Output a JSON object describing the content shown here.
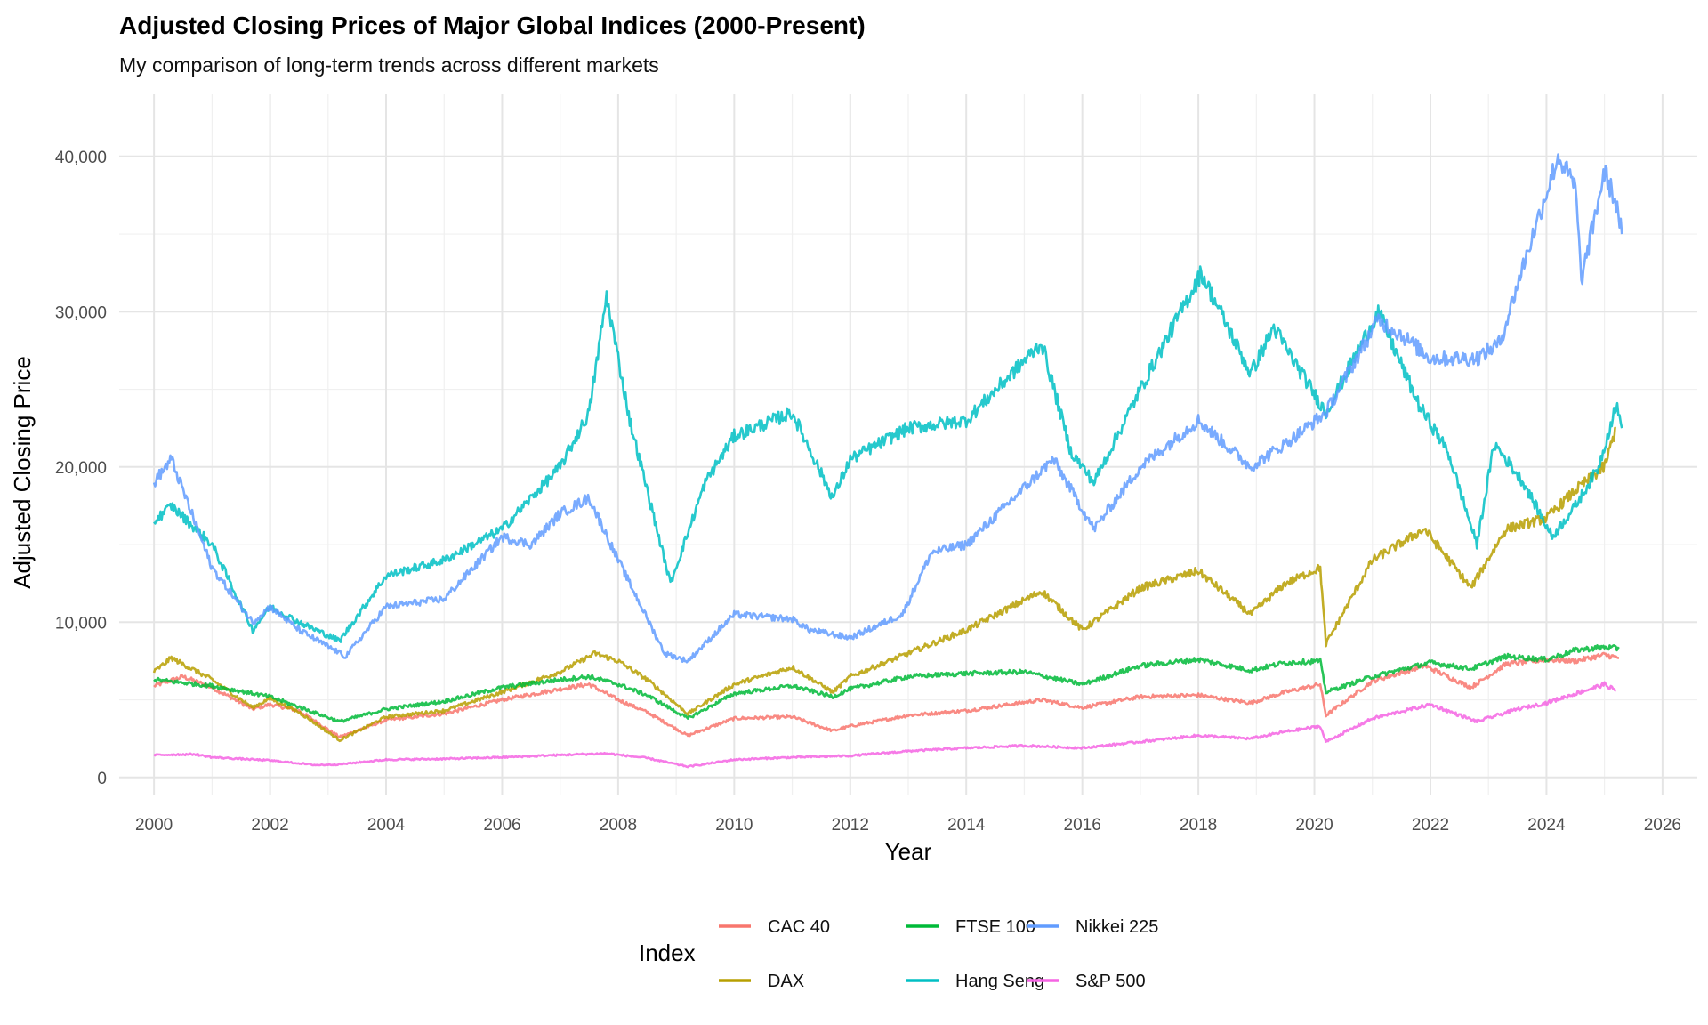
{
  "chart_data": {
    "type": "line",
    "title": "Adjusted Closing Prices of Major Global Indices (2000-Present)",
    "subtitle": "My comparison of long-term trends across different markets",
    "xlabel": "Year",
    "ylabel": "Adjusted Closing Price",
    "xlim": [
      1999.4,
      2026.6
    ],
    "ylim": [
      -1100,
      44000
    ],
    "x_ticks": [
      2000,
      2002,
      2004,
      2006,
      2008,
      2010,
      2012,
      2014,
      2016,
      2018,
      2020,
      2022,
      2024,
      2026
    ],
    "y_ticks": [
      0,
      10000,
      20000,
      30000,
      40000
    ],
    "y_tick_labels": [
      "0",
      "10,000",
      "20,000",
      "30,000",
      "40,000"
    ],
    "grid": true,
    "legend": {
      "title": "Index",
      "position": "bottom"
    },
    "series": [
      {
        "name": "CAC 40",
        "color": "#F8766D",
        "x": [
          2000,
          2000.5,
          2001,
          2001.7,
          2002,
          2002.5,
          2003.2,
          2004,
          2005,
          2006,
          2007,
          2007.5,
          2008,
          2008.5,
          2009.2,
          2010,
          2011,
          2011.7,
          2012,
          2013,
          2014,
          2015.3,
          2016,
          2017,
          2018,
          2018.9,
          2019.5,
          2020.1,
          2020.2,
          2021,
          2021.9,
          2022.7,
          2023.3,
          2024,
          2024.5,
          2025,
          2025.25
        ],
        "y": [
          5900,
          6500,
          5800,
          4400,
          4700,
          4300,
          2600,
          3700,
          4100,
          5000,
          5700,
          6000,
          5000,
          4200,
          2700,
          3800,
          3900,
          3000,
          3300,
          4000,
          4300,
          5000,
          4500,
          5200,
          5300,
          4800,
          5500,
          6000,
          4000,
          6200,
          7200,
          5800,
          7300,
          7600,
          7500,
          7900,
          7700
        ]
      },
      {
        "name": "DAX",
        "color": "#B79F00",
        "x": [
          2000,
          2000.3,
          2001,
          2001.7,
          2002,
          2002.5,
          2003.2,
          2004,
          2005,
          2006,
          2007,
          2007.6,
          2008,
          2008.5,
          2009.2,
          2010,
          2011,
          2011.7,
          2012,
          2013,
          2014,
          2015.3,
          2016,
          2017,
          2018,
          2018.9,
          2019.5,
          2020.1,
          2020.2,
          2021,
          2021.9,
          2022.7,
          2023.3,
          2024,
          2024.5,
          2025,
          2025.2
        ],
        "y": [
          6800,
          7700,
          6300,
          4500,
          5100,
          4200,
          2400,
          3900,
          4300,
          5500,
          6800,
          8000,
          7500,
          6300,
          4100,
          6000,
          7100,
          5500,
          6500,
          8000,
          9500,
          12000,
          9500,
          12200,
          13300,
          10500,
          12500,
          13500,
          8600,
          14000,
          16000,
          12200,
          16000,
          16700,
          18500,
          20000,
          22500
        ]
      },
      {
        "name": "FTSE 100",
        "color": "#00BA38",
        "x": [
          2000,
          2001,
          2002,
          2003.2,
          2004,
          2005,
          2006,
          2007,
          2007.5,
          2008,
          2008.5,
          2009.2,
          2010,
          2011,
          2011.7,
          2012,
          2013,
          2014,
          2015,
          2016,
          2017,
          2018,
          2018.9,
          2019.5,
          2020.1,
          2020.2,
          2021,
          2022,
          2022.7,
          2023.3,
          2024,
          2024.5,
          2025,
          2025.25
        ],
        "y": [
          6300,
          5900,
          5200,
          3600,
          4400,
          4900,
          5800,
          6300,
          6500,
          6000,
          5300,
          3800,
          5400,
          5900,
          5200,
          5700,
          6500,
          6700,
          6800,
          6000,
          7200,
          7600,
          6900,
          7400,
          7500,
          5500,
          6500,
          7400,
          7000,
          7800,
          7600,
          8200,
          8400,
          8300
        ]
      },
      {
        "name": "Hang Seng",
        "color": "#00BFC4",
        "x": [
          2000,
          2000.3,
          2001,
          2001.7,
          2002,
          2002.5,
          2003.2,
          2004,
          2005,
          2006,
          2007,
          2007.5,
          2007.8,
          2008.2,
          2008.9,
          2009.5,
          2010,
          2011,
          2011.7,
          2012,
          2013,
          2014,
          2015.3,
          2015.8,
          2016.2,
          2017,
          2018.05,
          2018.9,
          2019.3,
          2019.7,
          2020.2,
          2021.1,
          2021.8,
          2022.3,
          2022.8,
          2023.1,
          2023.6,
          2024.1,
          2024.5,
          2024.9,
          2025.2,
          2025.3
        ],
        "y": [
          16500,
          17500,
          15000,
          9500,
          11000,
          10000,
          8800,
          13000,
          14000,
          16000,
          20000,
          23500,
          31000,
          23000,
          12500,
          19000,
          22000,
          23500,
          18000,
          20500,
          22500,
          23000,
          28000,
          21000,
          19000,
          25000,
          32500,
          26000,
          29000,
          26500,
          23500,
          30000,
          24000,
          21000,
          15000,
          21500,
          19000,
          15500,
          17500,
          20000,
          24000,
          22500
        ]
      },
      {
        "name": "Nikkei 225",
        "color": "#619CFF",
        "x": [
          2000,
          2000.3,
          2001,
          2001.7,
          2002,
          2002.5,
          2003.3,
          2004,
          2005,
          2006,
          2006.5,
          2007,
          2007.5,
          2008,
          2008.8,
          2009.2,
          2010,
          2011,
          2011.3,
          2012,
          2012.9,
          2013.4,
          2014,
          2015.5,
          2016.2,
          2017,
          2018,
          2018.9,
          2019.5,
          2020.2,
          2021.1,
          2021.5,
          2022,
          2022.8,
          2023.2,
          2023.6,
          2024.2,
          2024.5,
          2024.6,
          2025,
          2025.2,
          2025.3
        ],
        "y": [
          19000,
          20500,
          13500,
          10000,
          11000,
          9500,
          7800,
          11000,
          11500,
          15500,
          15000,
          17000,
          18000,
          14000,
          8000,
          7500,
          10500,
          10200,
          9500,
          9000,
          10500,
          14500,
          15000,
          20500,
          16000,
          20000,
          23000,
          20000,
          21500,
          23500,
          29500,
          28500,
          27000,
          27000,
          28000,
          33000,
          40000,
          38000,
          32000,
          39000,
          37000,
          35000
        ]
      },
      {
        "name": "S&P 500",
        "color": "#F564E3",
        "x": [
          2000,
          2000.7,
          2001,
          2002,
          2002.8,
          2003.2,
          2004,
          2005,
          2006,
          2007,
          2007.8,
          2008.5,
          2009.2,
          2010,
          2011,
          2012,
          2013,
          2014,
          2015,
          2016,
          2017,
          2018,
          2018.9,
          2019.5,
          2020.1,
          2020.2,
          2021,
          2022,
          2022.8,
          2023.5,
          2024,
          2024.5,
          2025,
          2025.2
        ],
        "y": [
          1450,
          1500,
          1300,
          1100,
          800,
          850,
          1150,
          1200,
          1300,
          1450,
          1550,
          1250,
          700,
          1150,
          1300,
          1400,
          1700,
          1900,
          2050,
          1900,
          2300,
          2700,
          2500,
          2950,
          3300,
          2300,
          3800,
          4700,
          3600,
          4400,
          4800,
          5400,
          6000,
          5600
        ]
      }
    ]
  }
}
